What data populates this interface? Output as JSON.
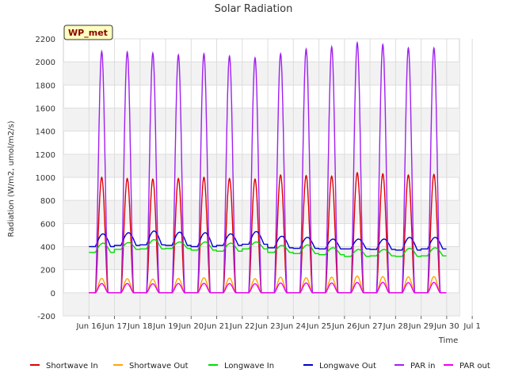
{
  "chart_data": {
    "type": "line",
    "title": "Solar Radiation",
    "xlabel": "Time",
    "ylabel": "Radiation (W/m2, umol/m2/s)",
    "badge": "WP_met",
    "ylim": [
      -200,
      2200
    ],
    "yticks": [
      -200,
      0,
      200,
      400,
      600,
      800,
      1000,
      1200,
      1400,
      1600,
      1800,
      2000,
      2200
    ],
    "xlim_days": [
      15,
      30.5
    ],
    "xticks": [
      "Jun 16",
      "Jun 17",
      "Jun 18",
      "Jun 19",
      "Jun 20",
      "Jun 21",
      "Jun 22",
      "Jun 23",
      "Jun 24",
      "Jun 25",
      "Jun 26",
      "Jun 27",
      "Jun 28",
      "Jun 29",
      "Jun 30",
      "Jul 1"
    ],
    "grid": true,
    "legend_position": "bottom",
    "days": [
      "Jun 16",
      "Jun 17",
      "Jun 18",
      "Jun 19",
      "Jun 20",
      "Jun 21",
      "Jun 22",
      "Jun 23",
      "Jun 24",
      "Jun 25",
      "Jun 26",
      "Jun 27",
      "Jun 28",
      "Jun 29"
    ],
    "series": [
      {
        "name": "Shortwave In",
        "color": "#dd0000",
        "kind": "peak",
        "daily_peak": [
          1000,
          990,
          985,
          990,
          1000,
          990,
          985,
          1020,
          1015,
          1010,
          1040,
          1030,
          1020,
          1025
        ]
      },
      {
        "name": "Shortwave Out",
        "color": "#ffa500",
        "kind": "peak",
        "daily_peak": [
          125,
          122,
          118,
          125,
          130,
          128,
          122,
          135,
          130,
          135,
          145,
          140,
          138,
          140
        ]
      },
      {
        "name": "Longwave In",
        "color": "#00dd00",
        "kind": "base",
        "daily_min": [
          350,
          375,
          380,
          385,
          370,
          360,
          380,
          350,
          340,
          330,
          315,
          320,
          315,
          320
        ],
        "daily_peak": [
          430,
          435,
          460,
          440,
          440,
          430,
          440,
          410,
          415,
          390,
          375,
          375,
          385,
          390
        ]
      },
      {
        "name": "Longwave Out",
        "color": "#0000cc",
        "kind": "base",
        "daily_min": [
          400,
          410,
          415,
          410,
          400,
          410,
          420,
          390,
          385,
          380,
          380,
          375,
          370,
          380
        ],
        "daily_peak": [
          510,
          520,
          535,
          525,
          520,
          510,
          530,
          490,
          480,
          465,
          465,
          465,
          480,
          480
        ]
      },
      {
        "name": "PAR in",
        "color": "#a020f0",
        "kind": "peak",
        "daily_peak": [
          2090,
          2085,
          2075,
          2060,
          2070,
          2050,
          2035,
          2070,
          2110,
          2130,
          2165,
          2150,
          2120,
          2120
        ]
      },
      {
        "name": "PAR out",
        "color": "#ee00ee",
        "kind": "peak",
        "daily_peak": [
          80,
          80,
          78,
          80,
          82,
          80,
          78,
          85,
          85,
          85,
          90,
          90,
          88,
          90
        ]
      }
    ]
  }
}
